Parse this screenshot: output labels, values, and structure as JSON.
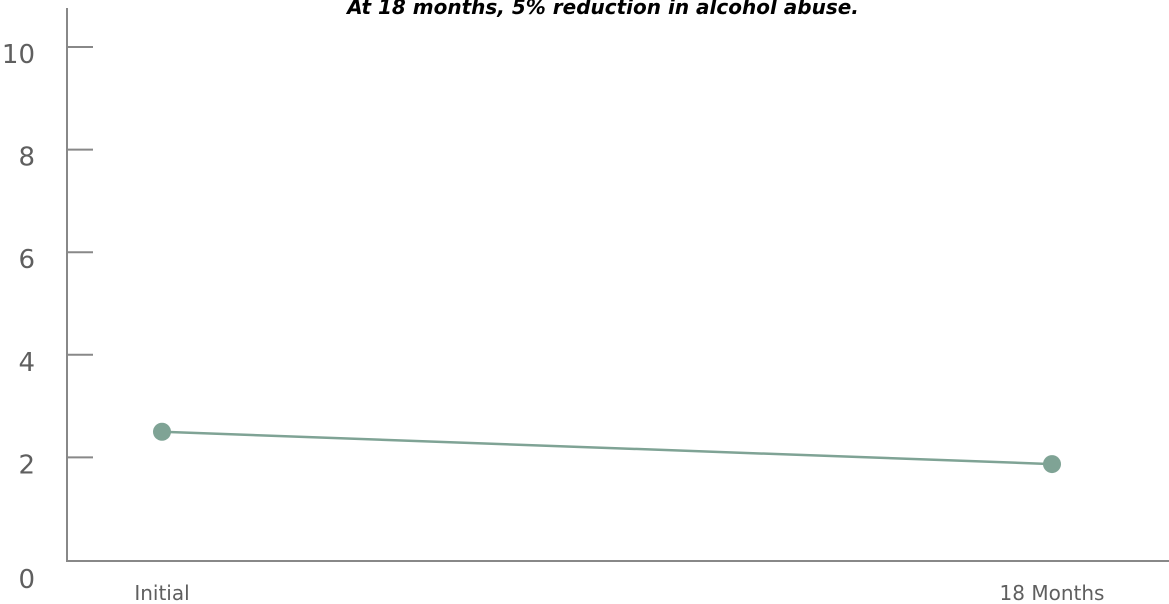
{
  "chart_data": {
    "type": "line",
    "title": "At 18 months, 5% reduction in alcohol abuse.",
    "xlabel": "",
    "ylabel": "",
    "categories": [
      "Initial",
      "18 Months"
    ],
    "series": [
      {
        "values": [
          2.5,
          1.87
        ],
        "color": "#7fa395"
      }
    ],
    "ylim": [
      0,
      10
    ],
    "yticks": [
      0,
      2,
      4,
      6,
      8,
      10
    ],
    "grid": false,
    "legend": "none"
  }
}
